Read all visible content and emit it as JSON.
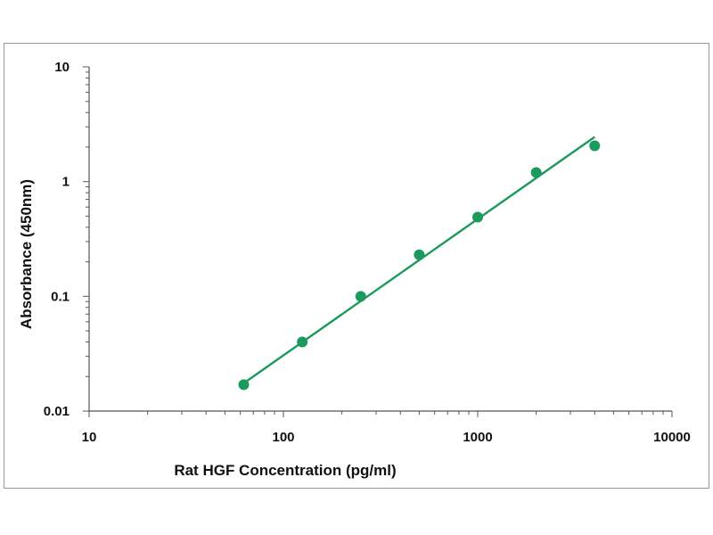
{
  "chart_data": {
    "type": "scatter",
    "title": "",
    "xlabel": "Rat HGF Concentration (pg/ml)",
    "ylabel": "Absorbance (450nm)",
    "x_scale": "log",
    "y_scale": "log",
    "xlim": [
      10,
      10000
    ],
    "ylim": [
      0.01,
      10
    ],
    "x_ticks": [
      10,
      100,
      1000,
      10000
    ],
    "x_tick_labels": [
      "10",
      "100",
      "1000",
      "10000"
    ],
    "y_ticks": [
      0.01,
      0.1,
      1,
      10
    ],
    "y_tick_labels": [
      "0.01",
      "0.1",
      "1",
      "10"
    ],
    "grid": false,
    "legend": "none",
    "series": [
      {
        "points": [
          {
            "x": 62.5,
            "y": 0.017
          },
          {
            "x": 125,
            "y": 0.04
          },
          {
            "x": 250,
            "y": 0.1
          },
          {
            "x": 500,
            "y": 0.23
          },
          {
            "x": 1000,
            "y": 0.49
          },
          {
            "x": 2000,
            "y": 1.2
          },
          {
            "x": 4000,
            "y": 2.05
          }
        ],
        "fit_line": [
          {
            "x": 62.5,
            "y": 0.0175
          },
          {
            "x": 4000,
            "y": 2.45
          }
        ]
      }
    ],
    "colors": {
      "series": "#1a9a5c",
      "axis": "#555555"
    }
  }
}
